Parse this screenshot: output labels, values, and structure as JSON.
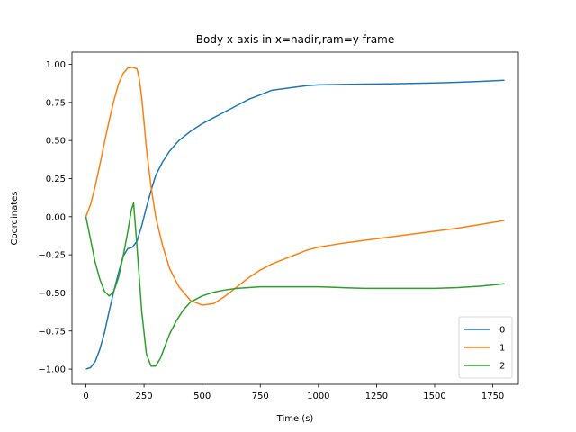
{
  "chart_data": {
    "type": "line",
    "title": "Body x-axis in x=nadir,ram=y frame",
    "xlabel": "Time (s)",
    "ylabel": "Coordinates",
    "xlim": [
      -60,
      1860
    ],
    "ylim": [
      -1.1,
      1.08
    ],
    "xticks": [
      0,
      250,
      500,
      750,
      1000,
      1250,
      1500,
      1750
    ],
    "xtick_labels": [
      "0",
      "250",
      "500",
      "750",
      "1000",
      "1250",
      "1500",
      "1750"
    ],
    "yticks": [
      -1.0,
      -0.75,
      -0.5,
      -0.25,
      0.0,
      0.25,
      0.5,
      0.75,
      1.0
    ],
    "ytick_labels": [
      "−1.00",
      "−0.75",
      "−0.50",
      "−0.25",
      "0.00",
      "0.25",
      "0.50",
      "0.75",
      "1.00"
    ],
    "grid": false,
    "legend_position": "bottom-right",
    "series": [
      {
        "name": "0",
        "color": "#1f77b4",
        "x": [
          0,
          20,
          40,
          60,
          80,
          100,
          120,
          140,
          160,
          180,
          200,
          220,
          240,
          260,
          280,
          300,
          330,
          360,
          400,
          450,
          500,
          550,
          600,
          650,
          700,
          750,
          800,
          850,
          900,
          950,
          1000,
          1100,
          1200,
          1300,
          1400,
          1500,
          1600,
          1700,
          1800
        ],
        "y": [
          -1.0,
          -0.99,
          -0.95,
          -0.87,
          -0.76,
          -0.62,
          -0.49,
          -0.37,
          -0.26,
          -0.21,
          -0.2,
          -0.16,
          -0.06,
          0.06,
          0.17,
          0.27,
          0.36,
          0.43,
          0.5,
          0.56,
          0.61,
          0.65,
          0.69,
          0.73,
          0.77,
          0.8,
          0.83,
          0.84,
          0.85,
          0.86,
          0.865,
          0.868,
          0.87,
          0.872,
          0.875,
          0.878,
          0.882,
          0.888,
          0.895
        ]
      },
      {
        "name": "1",
        "color": "#ff7f0e",
        "x": [
          0,
          20,
          40,
          60,
          80,
          100,
          120,
          140,
          160,
          180,
          200,
          220,
          230,
          240,
          250,
          260,
          280,
          300,
          330,
          360,
          400,
          450,
          500,
          550,
          600,
          650,
          700,
          750,
          800,
          850,
          900,
          950,
          1000,
          1100,
          1200,
          1300,
          1400,
          1500,
          1600,
          1700,
          1800
        ],
        "y": [
          0.0,
          0.08,
          0.2,
          0.34,
          0.49,
          0.63,
          0.76,
          0.87,
          0.94,
          0.975,
          0.98,
          0.97,
          0.9,
          0.78,
          0.62,
          0.45,
          0.2,
          0.0,
          -0.19,
          -0.34,
          -0.46,
          -0.55,
          -0.58,
          -0.57,
          -0.52,
          -0.46,
          -0.4,
          -0.35,
          -0.31,
          -0.28,
          -0.25,
          -0.22,
          -0.2,
          -0.175,
          -0.155,
          -0.135,
          -0.115,
          -0.095,
          -0.075,
          -0.05,
          -0.025
        ]
      },
      {
        "name": "2",
        "color": "#2ca02c",
        "x": [
          0,
          20,
          40,
          60,
          80,
          100,
          120,
          140,
          160,
          180,
          195,
          205,
          220,
          240,
          260,
          280,
          300,
          320,
          340,
          360,
          390,
          420,
          450,
          500,
          550,
          600,
          650,
          700,
          750,
          800,
          850,
          900,
          1000,
          1100,
          1200,
          1300,
          1400,
          1500,
          1600,
          1700,
          1800
        ],
        "y": [
          0.0,
          -0.15,
          -0.3,
          -0.41,
          -0.49,
          -0.52,
          -0.49,
          -0.4,
          -0.26,
          -0.1,
          0.04,
          0.09,
          -0.2,
          -0.62,
          -0.9,
          -0.98,
          -0.98,
          -0.93,
          -0.85,
          -0.77,
          -0.68,
          -0.61,
          -0.56,
          -0.52,
          -0.495,
          -0.48,
          -0.47,
          -0.465,
          -0.46,
          -0.46,
          -0.46,
          -0.46,
          -0.46,
          -0.465,
          -0.47,
          -0.47,
          -0.47,
          -0.47,
          -0.465,
          -0.455,
          -0.44
        ]
      }
    ]
  }
}
